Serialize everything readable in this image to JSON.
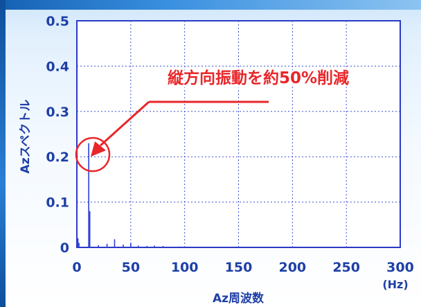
{
  "chart_data": {
    "type": "line",
    "xlabel": "Az周波数",
    "xunit": "(Hz)",
    "ylabel": "Azスペクトル",
    "xlim": [
      0,
      300
    ],
    "ylim": [
      0,
      0.5
    ],
    "x_ticks": [
      "0",
      "50",
      "100",
      "150",
      "200",
      "250",
      "300"
    ],
    "y_ticks": [
      "0",
      "0.1",
      "0.2",
      "0.3",
      "0.4",
      "0.5"
    ],
    "grid": true,
    "series": [
      {
        "color": "#2b3fd6",
        "x": [
          1,
          2,
          10,
          11,
          12,
          13,
          14,
          20,
          28,
          35,
          43,
          50,
          57,
          65,
          72,
          80,
          95
        ],
        "y": [
          0.02,
          0.01,
          0.0,
          0.23,
          0.08,
          0.0,
          0.0,
          0.005,
          0.008,
          0.018,
          0.006,
          0.01,
          0.004,
          0.003,
          0.004,
          0.003,
          0.002
        ]
      }
    ],
    "annotations": [
      {
        "text": "縦方向振動を約50%削減",
        "target_x": 12,
        "target_y": 0.21,
        "color": "#e8262a"
      }
    ]
  }
}
